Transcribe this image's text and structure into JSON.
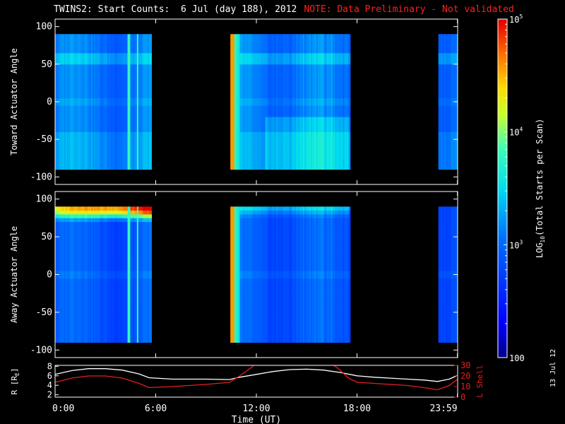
{
  "header": {
    "title": "TWINS2: Start Counts:  6 Jul (day 188), 2012",
    "note": "NOTE: Data Preliminary - Not validated"
  },
  "footer": {
    "date_stamp": "13 Jul 12"
  },
  "colors": {
    "background": "#000000",
    "axes": "#ffffff",
    "note": "#ff2020",
    "r_line": "#ffffff",
    "lshell_line": "#e02020"
  },
  "chart_data": [
    {
      "type": "heatmap",
      "panel": "toward",
      "ylabel": "Toward Actuator Angle",
      "ylim": [
        -110,
        110
      ],
      "yticks": [
        -100,
        -50,
        0,
        50,
        100
      ],
      "xlim": [
        0,
        24
      ],
      "data_blocks_hours": [
        [
          0.0,
          5.75
        ],
        [
          10.45,
          17.6
        ],
        [
          22.85,
          24.0
        ]
      ],
      "y_data_range": [
        -90,
        90
      ]
    },
    {
      "type": "heatmap",
      "panel": "away",
      "ylabel": "Away Actuator Angle",
      "ylim": [
        -110,
        110
      ],
      "yticks": [
        -100,
        -50,
        0,
        50,
        100
      ],
      "xlim": [
        0,
        24
      ],
      "data_blocks_hours": [
        [
          0.0,
          5.75
        ],
        [
          10.45,
          17.6
        ],
        [
          22.85,
          24.0
        ]
      ],
      "y_data_range": [
        -90,
        90
      ]
    },
    {
      "type": "line",
      "panel": "ephemeris",
      "xlabel": "Time (UT)",
      "xticks": [
        "0:00",
        "6:00",
        "12:00",
        "18:00",
        "23:59"
      ],
      "xtick_hours": [
        0,
        6,
        12,
        18,
        23.983
      ],
      "ylabel_left": "R [R",
      "ylabel_left_sub": "E",
      "ylabel_left_end": "]",
      "ylim_left": [
        1.5,
        8.2
      ],
      "yticks_left": [
        2,
        4,
        6,
        8
      ],
      "ylabel_right": "L Shell",
      "ylim_right": [
        0,
        30
      ],
      "yticks_right": [
        0,
        10,
        20,
        30
      ],
      "series": [
        {
          "color": "#ffffff",
          "axis": "left",
          "x": [
            0,
            1,
            2,
            3,
            4,
            5,
            5.6,
            7,
            9,
            10.4,
            11,
            12,
            13,
            14,
            15,
            16,
            17,
            18,
            19,
            20,
            21,
            22,
            22.8,
            23.5,
            24
          ],
          "y": [
            6.3,
            7.1,
            7.5,
            7.5,
            7.2,
            6.4,
            5.6,
            5.3,
            5.3,
            5.2,
            5.7,
            6.3,
            6.9,
            7.3,
            7.4,
            7.2,
            6.7,
            6.0,
            5.7,
            5.5,
            5.3,
            5.1,
            4.8,
            5.3,
            6.1
          ]
        },
        {
          "color": "#e02020",
          "axis": "right",
          "x": [
            0,
            1,
            2,
            3,
            4,
            5,
            5.6,
            7,
            9,
            10.4,
            11,
            11.7,
            11.9,
            16.5,
            16.8,
            17.5,
            18,
            19,
            20,
            21,
            22,
            22.8,
            23.5,
            24
          ],
          "y": [
            14,
            18,
            20,
            20,
            18,
            13,
            9,
            10,
            12,
            14,
            20,
            28,
            31,
            31,
            28,
            18,
            14,
            13,
            12,
            11,
            9,
            7,
            11,
            17
          ]
        }
      ]
    },
    {
      "type": "colorbar",
      "label_pre": "LOG",
      "label_sub": "10",
      "label_post": "(Total Starts per Scan)",
      "scale": "log",
      "range": [
        100,
        100000
      ],
      "tick_labels": [
        "100",
        "10",
        "10",
        "10"
      ],
      "tick_powers": [
        null,
        "3",
        "4",
        "5"
      ]
    }
  ]
}
